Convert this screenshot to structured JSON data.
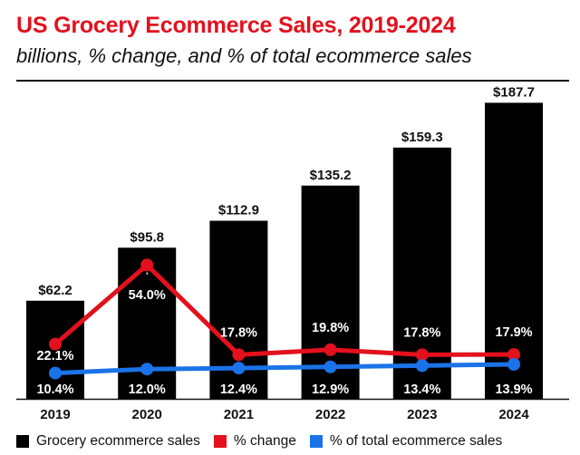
{
  "chart_data": {
    "type": "bar",
    "title": "US Grocery Ecommerce Sales, 2019-2024",
    "subtitle": "billions, % change, and % of total ecommerce sales",
    "categories": [
      "2019",
      "2020",
      "2021",
      "2022",
      "2023",
      "2024"
    ],
    "ylim": [
      0,
      200
    ],
    "series": [
      {
        "name": "Grocery ecommerce sales",
        "kind": "bar",
        "color": "#000000",
        "values": [
          62.2,
          95.8,
          112.9,
          135.2,
          159.3,
          187.7
        ],
        "labels": [
          "$62.2",
          "$95.8",
          "$112.9",
          "$135.2",
          "$159.3",
          "$187.7"
        ]
      },
      {
        "name": "% change",
        "kind": "line",
        "color": "#e3111d",
        "values": [
          22.1,
          54.0,
          17.8,
          19.8,
          17.8,
          17.9
        ],
        "labels": [
          "22.1%",
          "54.0%",
          "17.8%",
          "19.8%",
          "17.8%",
          "17.9%"
        ]
      },
      {
        "name": "% of total ecommerce sales",
        "kind": "line",
        "color": "#1a73e8",
        "values": [
          10.4,
          12.0,
          12.4,
          12.9,
          13.4,
          13.9
        ],
        "labels": [
          "10.4%",
          "12.0%",
          "12.4%",
          "12.9%",
          "13.4%",
          "13.9%"
        ]
      }
    ],
    "grid": false,
    "legend": "bottom"
  }
}
